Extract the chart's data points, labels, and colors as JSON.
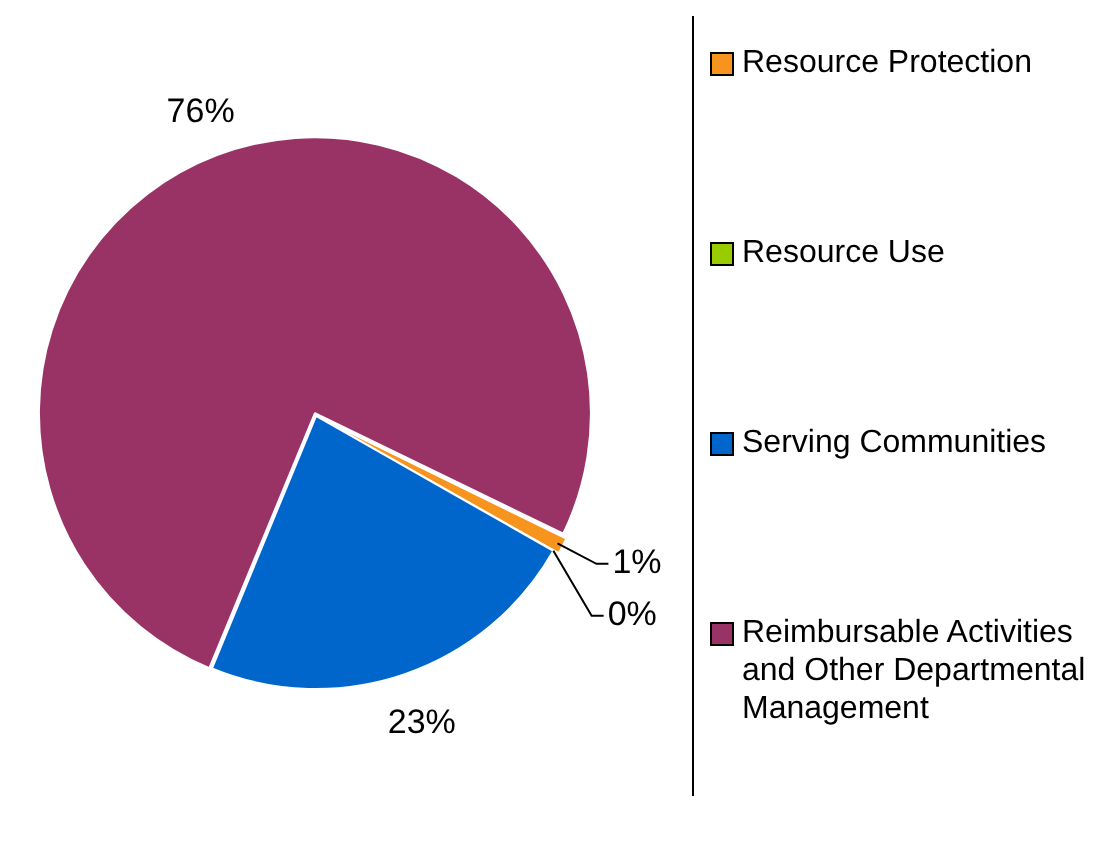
{
  "chart_data": {
    "type": "pie",
    "categories": [
      "Resource Protection",
      "Resource Use",
      "Serving Communities",
      "Reimbursable Activities and Other Departmental Management"
    ],
    "values": [
      1,
      0,
      23,
      76
    ],
    "colors": [
      "#f7941d",
      "#99cc00",
      "#0066cc",
      "#993366"
    ],
    "value_labels": [
      "1%",
      "0%",
      "23%",
      "76%"
    ],
    "legend": "right"
  }
}
